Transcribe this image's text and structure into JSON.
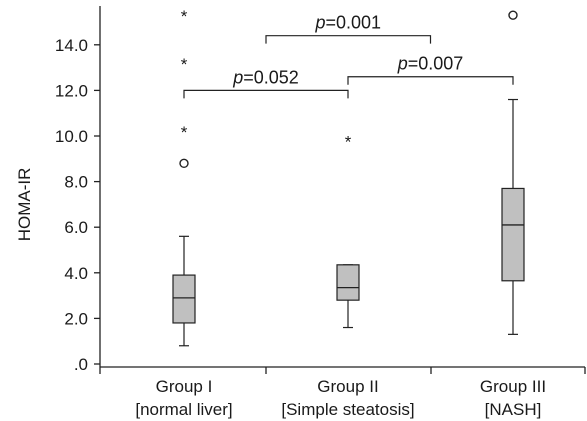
{
  "chart_data": {
    "type": "boxplot",
    "ylabel": "HOMA-IR",
    "ylim": [
      0,
      15.5
    ],
    "yticks": [
      ".0",
      "2.0",
      "4.0",
      "6.0",
      "8.0",
      "10.0",
      "12.0",
      "14.0"
    ],
    "yticks_values": [
      0,
      2,
      4,
      6,
      8,
      10,
      12,
      14
    ],
    "box_fill": "#c0c0c0",
    "groups": [
      {
        "label_line1": "Group I",
        "label_line2": "[normal liver]",
        "whisker_low": 0.8,
        "q1": 1.8,
        "median": 2.9,
        "q3": 3.9,
        "whisker_high": 5.6,
        "outliers": [
          8.8
        ],
        "extremes": [
          10.3,
          13.3,
          15.4
        ]
      },
      {
        "label_line1": "Group II",
        "label_line2": "[Simple steatosis]",
        "whisker_low": 1.6,
        "q1": 2.8,
        "median": 3.35,
        "q3": 4.35,
        "whisker_high": 4.35,
        "outliers": [],
        "extremes": [
          9.9
        ]
      },
      {
        "label_line1": "Group III",
        "label_line2": "[NASH]",
        "whisker_low": 1.3,
        "q1": 3.65,
        "median": 6.1,
        "q3": 7.7,
        "whisker_high": 11.6,
        "outliers": [
          15.3
        ],
        "extremes": []
      }
    ],
    "comparisons": [
      {
        "from": 0,
        "to": 1,
        "y": 12.0,
        "p_label": "p",
        "p_value": "=0.052"
      },
      {
        "from": 1,
        "to": 2,
        "y": 12.6,
        "p_label": "p",
        "p_value": "=0.007"
      },
      {
        "from": 0.5,
        "to": 1.5,
        "y": 14.4,
        "p_label": "p",
        "p_value": "=0.001"
      }
    ]
  }
}
